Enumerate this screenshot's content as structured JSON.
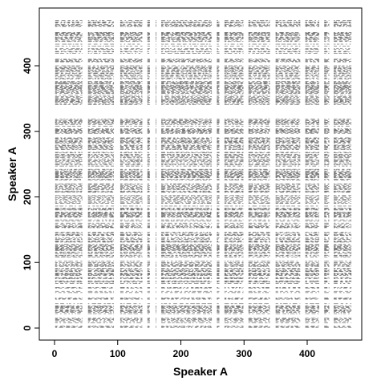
{
  "chart_data": {
    "type": "heatmap",
    "title": "",
    "xlabel": "Speaker A",
    "ylabel": "Speaker A",
    "xlim": [
      -10,
      480
    ],
    "ylim": [
      -10,
      480
    ],
    "xticks": [
      0,
      100,
      200,
      300,
      400
    ],
    "yticks": [
      0,
      100,
      200,
      300,
      400
    ],
    "x_range": [
      1,
      470
    ],
    "y_range": [
      1,
      470
    ],
    "matrix_size": 470,
    "mark_color": "#555555",
    "column_gaps": [
      [
        45,
        52
      ],
      [
        95,
        103
      ],
      [
        140,
        146
      ],
      [
        152,
        159
      ],
      [
        162,
        168
      ],
      [
        250,
        256
      ],
      [
        262,
        268
      ],
      [
        300,
        306
      ],
      [
        342,
        349
      ],
      [
        390,
        396
      ],
      [
        420,
        426
      ],
      [
        436,
        441
      ]
    ],
    "row_gaps": [
      [
        5,
        7
      ],
      [
        16,
        18
      ],
      [
        38,
        42
      ],
      [
        47,
        53
      ],
      [
        63,
        65
      ],
      [
        103,
        107
      ],
      [
        147,
        152
      ],
      [
        203,
        206
      ],
      [
        222,
        225
      ],
      [
        243,
        245
      ],
      [
        291,
        295
      ],
      [
        320,
        340
      ],
      [
        377,
        379
      ],
      [
        402,
        404
      ],
      [
        434,
        436
      ],
      [
        455,
        457
      ]
    ],
    "grid": false,
    "legend": "none"
  }
}
